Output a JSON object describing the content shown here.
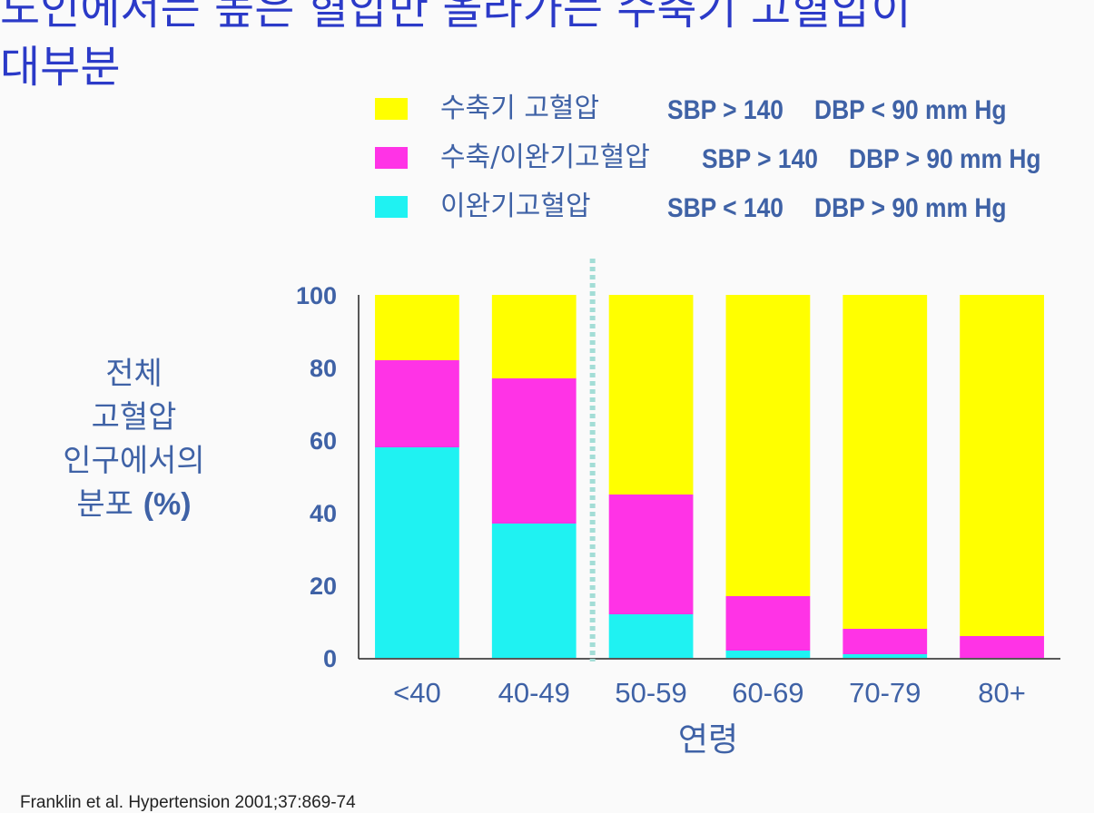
{
  "title": {
    "line1": "노인에서는 높은 혈압만 올라가는 수축기 고혈압이",
    "line2": "대부분"
  },
  "legend": [
    {
      "name": "수축기 고혈압",
      "sbp": "SBP > 140",
      "dbp": "DBP < 90 mm Hg",
      "color": "#ffff00"
    },
    {
      "name": "수축/이완기고혈압",
      "sbp": "SBP > 140",
      "dbp": "DBP > 90 mm Hg",
      "color": "#ff33e6"
    },
    {
      "name": "이완기고혈압",
      "sbp": "SBP < 140",
      "dbp": "DBP > 90 mm Hg",
      "color": "#1ff2f2"
    }
  ],
  "y_axis_label": {
    "line1": "전체",
    "line2": "고혈압",
    "line3": "인구에서의",
    "line4_text": "분포 ",
    "line4_bold": "(%)"
  },
  "x_axis_label": "연령",
  "citation": "Franklin et al. Hypertension 2001;37:869-74",
  "chart_data": {
    "type": "bar",
    "stacked": true,
    "categories": [
      "<40",
      "40-49",
      "50-59",
      "60-69",
      "70-79",
      "80+"
    ],
    "series": [
      {
        "name": "이완기고혈압",
        "color": "#1ff2f2",
        "values": [
          58,
          37,
          12,
          2,
          1,
          0
        ]
      },
      {
        "name": "수축/이완기고혈압",
        "color": "#ff33e6",
        "values": [
          24,
          40,
          33,
          15,
          7,
          6
        ]
      },
      {
        "name": "수축기 고혈압",
        "color": "#ffff00",
        "values": [
          18,
          23,
          55,
          83,
          92,
          94
        ]
      }
    ],
    "ylim": [
      0,
      100
    ],
    "yticks": [
      0,
      20,
      40,
      60,
      80,
      100
    ],
    "xlabel": "연령",
    "ylabel": "전체 고혈압 인구에서의 분포 (%)",
    "divider_after_category": "40-49"
  }
}
